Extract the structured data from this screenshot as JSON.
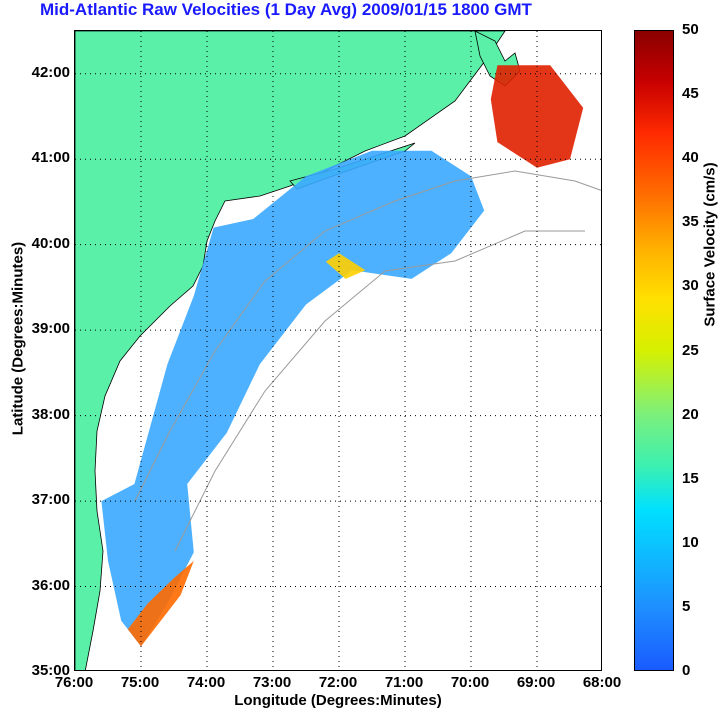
{
  "title": "Mid-Atlantic Raw Velocities (1 Day Avg) 2009/01/15 1800 GMT",
  "x_axis": {
    "label": "Longitude (Degrees:Minutes)",
    "ticks": [
      "76:00",
      "75:00",
      "74:00",
      "73:00",
      "72:00",
      "71:00",
      "70:00",
      "69:00",
      "68:00"
    ]
  },
  "y_axis": {
    "label": "Latitude (Degrees:Minutes)",
    "ticks": [
      "42:00",
      "41:00",
      "40:00",
      "39:00",
      "38:00",
      "37:00",
      "36:00",
      "35:00"
    ]
  },
  "colorbar": {
    "label": "Surface Velocity (cm/s)",
    "ticks": [
      "50",
      "45",
      "40",
      "35",
      "30",
      "25",
      "20",
      "15",
      "10",
      "5",
      "0"
    ],
    "range": [
      0,
      50
    ]
  },
  "colors": {
    "title": "#1a1aff",
    "land": "#5af0a8",
    "coast": "#000000",
    "bathymetry": "#9a9a9a",
    "grid": "#000000"
  },
  "chart_data": {
    "type": "heatmap",
    "title": "Mid-Atlantic Raw Velocities (1 Day Avg) 2009/01/15 1800 GMT",
    "xlabel": "Longitude (Degrees:Minutes)",
    "ylabel": "Latitude (Degrees:Minutes)",
    "colorbar_label": "Surface Velocity (cm/s)",
    "xlim": [
      -76,
      -68
    ],
    "ylim": [
      35,
      42.5
    ],
    "grid": true,
    "value_range": [
      0,
      50
    ]
  }
}
